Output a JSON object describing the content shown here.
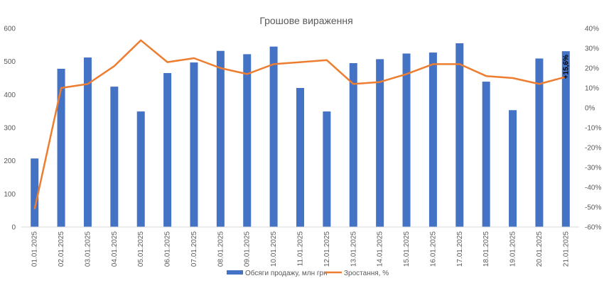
{
  "chart_data": {
    "type": "bar",
    "title": "Грошове вираження",
    "categories": [
      "01.01.2025",
      "02.01.2025",
      "03.01.2025",
      "04.01.2025",
      "05.01.2025",
      "06.01.2025",
      "07.01.2025",
      "08.01.2025",
      "09.01.2025",
      "10.01.2025",
      "11.01.2025",
      "12.01.2025",
      "13.01.2025",
      "14.01.2025",
      "15.01.2025",
      "16.01.2025",
      "17.01.2025",
      "18.01.2025",
      "19.01.2025",
      "20.01.2025",
      "21.01.2025"
    ],
    "series": [
      {
        "name": "Обсяги продажу, млн грн",
        "type": "bar",
        "axis": "left",
        "color": "#4472C4",
        "values": [
          207,
          478,
          512,
          424,
          349,
          465,
          497,
          532,
          522,
          545,
          420,
          349,
          495,
          507,
          524,
          527,
          555,
          439,
          353,
          509,
          531
        ]
      },
      {
        "name": "Зростання, %",
        "type": "line",
        "axis": "right",
        "color": "#ED7D31",
        "values": [
          -51,
          10,
          12,
          21,
          34,
          23,
          25,
          20,
          17,
          22,
          23,
          24,
          12,
          13,
          17,
          22,
          22,
          16,
          15,
          12,
          15.6
        ]
      }
    ],
    "y_left": {
      "min": 0,
      "max": 600,
      "step": 100,
      "ticks": [
        "0",
        "100",
        "200",
        "300",
        "400",
        "500",
        "600"
      ]
    },
    "y_right": {
      "min": -60,
      "max": 40,
      "step": 10,
      "ticks": [
        "-60%",
        "-50%",
        "-40%",
        "-30%",
        "-20%",
        "-10%",
        "0%",
        "10%",
        "20%",
        "30%",
        "40%"
      ]
    },
    "grid": false,
    "legend_position": "bottom",
    "annotation": {
      "text": "+15,6%",
      "category_index": 20
    }
  }
}
